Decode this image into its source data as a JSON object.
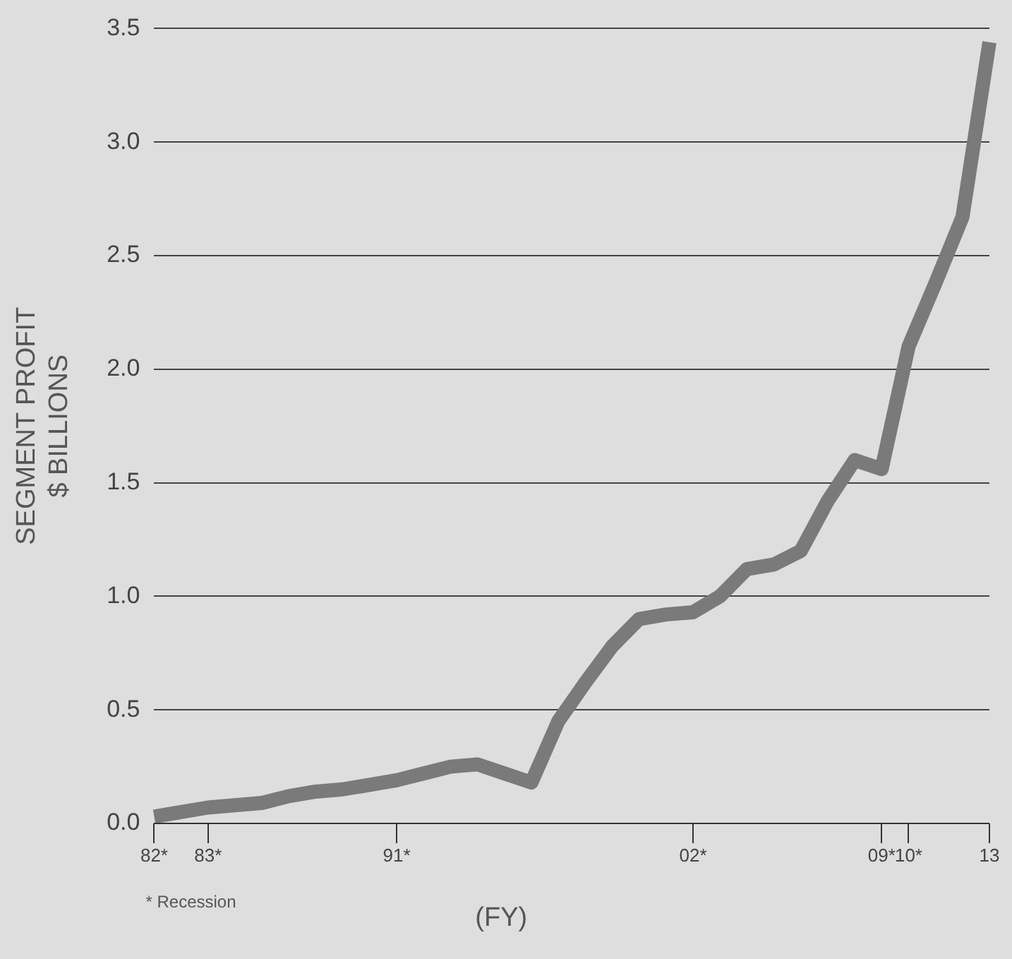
{
  "chart_data": {
    "type": "line",
    "ylabel": "SEGMENT PROFIT\n$ BILLIONS",
    "xlabel": "(FY)",
    "annotations": [
      "* Recession"
    ],
    "categories": [
      "82*",
      null,
      "83*",
      null,
      null,
      null,
      null,
      null,
      null,
      "91*",
      null,
      null,
      null,
      null,
      null,
      null,
      null,
      null,
      null,
      null,
      "02*",
      null,
      null,
      null,
      null,
      null,
      null,
      "09*",
      "10*",
      null,
      null,
      "13"
    ],
    "series": [
      {
        "color": "#7a7a7a",
        "values": [
          0.03,
          0.05,
          0.07,
          0.08,
          0.09,
          0.12,
          0.14,
          0.15,
          0.17,
          0.19,
          0.22,
          0.25,
          0.26,
          0.22,
          0.18,
          0.45,
          0.62,
          0.78,
          0.9,
          0.92,
          0.93,
          1.0,
          1.12,
          1.14,
          1.2,
          1.42,
          1.6,
          1.56,
          2.1,
          2.38,
          2.67,
          3.44
        ]
      }
    ],
    "ylim": [
      0,
      3.5
    ],
    "yticks": [
      {
        "value": 0,
        "label": "0.0"
      },
      {
        "value": 0.5,
        "label": "0.5"
      },
      {
        "value": 1,
        "label": "1.0"
      },
      {
        "value": 1.5,
        "label": "1.5"
      },
      {
        "value": 2,
        "label": "2.0"
      },
      {
        "value": 2.5,
        "label": "2.5"
      },
      {
        "value": 3,
        "label": "3.0"
      },
      {
        "value": 3.5,
        "label": "3.5"
      }
    ],
    "grid": "y",
    "legend": false,
    "marker": "none",
    "line_style": "solid"
  }
}
